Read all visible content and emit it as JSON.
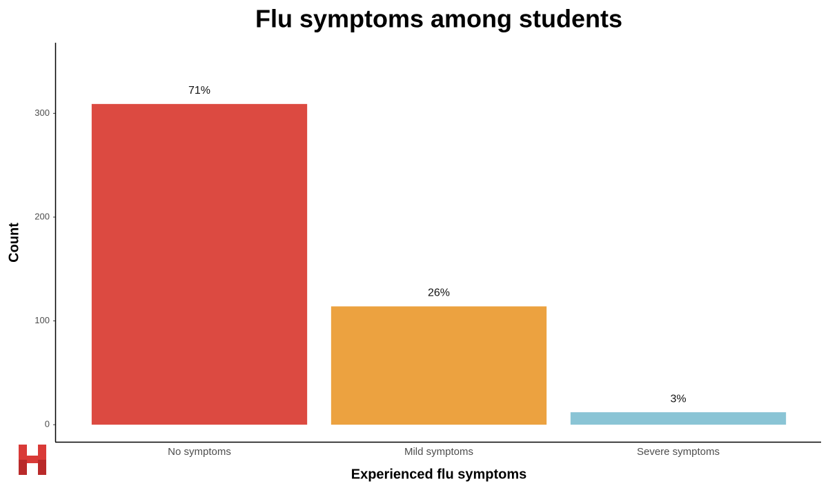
{
  "chart_data": {
    "type": "bar",
    "title": "Flu symptoms among students",
    "x_label": "Experienced flu symptoms",
    "y_label": "Count",
    "categories": [
      "No symptoms",
      "Mild symptoms",
      "Severe symptoms"
    ],
    "values": [
      309,
      114,
      12
    ],
    "bar_labels": [
      "71%",
      "26%",
      "3%"
    ],
    "colors": [
      "#dc4a41",
      "#eca240",
      "#8ac4d5"
    ],
    "ylim": [
      -16.5,
      368
    ],
    "yticks": [
      0,
      100,
      200,
      300
    ],
    "grid": false
  }
}
